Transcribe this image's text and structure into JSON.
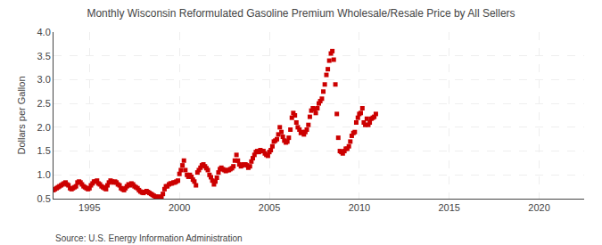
{
  "chart_data": {
    "type": "scatter",
    "title": "Monthly Wisconsin Reformulated Gasoline Premium Wholesale/Resale Price by All Sellers",
    "ylabel": "Dollars per Gallon",
    "annotations": [
      "Source: U.S. Energy Information Administration"
    ],
    "color": "#cc0000",
    "marker": "square",
    "grid": true,
    "xlim": [
      1993.0,
      2022.5
    ],
    "xticks": [
      1995,
      2000,
      2005,
      2010,
      2015,
      2020
    ],
    "ylim": [
      0.5,
      4.0
    ],
    "yticks": [
      0.5,
      {
        "value": 1.0,
        "label": "1.0"
      },
      1.5,
      {
        "value": 2.0,
        "label": "2.0"
      },
      2.5,
      {
        "value": 3.0,
        "label": "3.0"
      },
      3.5,
      {
        "value": 4.0,
        "label": "4.0"
      }
    ],
    "x": [
      1993.0,
      1993.08,
      1993.17,
      1993.25,
      1993.33,
      1993.42,
      1993.5,
      1993.58,
      1993.67,
      1993.75,
      1993.83,
      1993.92,
      1994.0,
      1994.08,
      1994.17,
      1994.25,
      1994.33,
      1994.42,
      1994.5,
      1994.58,
      1994.67,
      1994.75,
      1994.83,
      1994.92,
      1995.0,
      1995.08,
      1995.17,
      1995.25,
      1995.33,
      1995.42,
      1995.5,
      1995.58,
      1995.67,
      1995.75,
      1995.83,
      1995.92,
      1996.0,
      1996.08,
      1996.17,
      1996.25,
      1996.33,
      1996.42,
      1996.5,
      1996.58,
      1996.67,
      1996.75,
      1996.83,
      1996.92,
      1997.0,
      1997.08,
      1997.17,
      1997.25,
      1997.33,
      1997.42,
      1997.5,
      1997.58,
      1997.67,
      1997.75,
      1997.83,
      1997.92,
      1998.0,
      1998.08,
      1998.17,
      1998.25,
      1998.33,
      1998.42,
      1998.5,
      1998.58,
      1998.67,
      1998.75,
      1998.83,
      1998.92,
      1999.0,
      1999.08,
      1999.17,
      1999.25,
      1999.33,
      1999.42,
      1999.5,
      1999.58,
      1999.67,
      1999.75,
      1999.83,
      1999.92,
      2000.0,
      2000.08,
      2000.17,
      2000.25,
      2000.33,
      2000.42,
      2000.5,
      2000.58,
      2000.67,
      2000.75,
      2000.83,
      2000.92,
      2001.0,
      2001.08,
      2001.17,
      2001.25,
      2001.33,
      2001.42,
      2001.5,
      2001.58,
      2001.67,
      2001.75,
      2001.83,
      2001.92,
      2002.0,
      2002.08,
      2002.17,
      2002.25,
      2002.33,
      2002.42,
      2002.5,
      2002.58,
      2002.67,
      2002.75,
      2002.83,
      2002.92,
      2003.0,
      2003.08,
      2003.17,
      2003.25,
      2003.33,
      2003.42,
      2003.5,
      2003.58,
      2003.67,
      2003.75,
      2003.83,
      2003.92,
      2004.0,
      2004.08,
      2004.17,
      2004.25,
      2004.33,
      2004.42,
      2004.5,
      2004.58,
      2004.67,
      2004.75,
      2004.83,
      2004.92,
      2005.0,
      2005.08,
      2005.17,
      2005.25,
      2005.33,
      2005.42,
      2005.5,
      2005.58,
      2005.67,
      2005.75,
      2005.83,
      2005.92,
      2006.0,
      2006.08,
      2006.17,
      2006.25,
      2006.33,
      2006.42,
      2006.5,
      2006.58,
      2006.67,
      2006.75,
      2006.83,
      2006.92,
      2007.0,
      2007.08,
      2007.17,
      2007.25,
      2007.33,
      2007.42,
      2007.5,
      2007.58,
      2007.67,
      2007.75,
      2007.83,
      2007.92,
      2008.0,
      2008.08,
      2008.17,
      2008.25,
      2008.33,
      2008.42,
      2008.5,
      2008.58,
      2008.67,
      2008.75,
      2008.83,
      2008.92,
      2009.0,
      2009.08,
      2009.17,
      2009.25,
      2009.33,
      2009.42,
      2009.5,
      2009.58,
      2009.67,
      2009.75,
      2009.83,
      2009.92,
      2010.0,
      2010.08,
      2010.17,
      2010.25,
      2010.33,
      2010.42,
      2010.5,
      2010.58,
      2010.67,
      2010.75,
      2010.83,
      2010.92
    ],
    "values": [
      0.68,
      0.7,
      0.72,
      0.74,
      0.76,
      0.78,
      0.8,
      0.82,
      0.84,
      0.8,
      0.78,
      0.72,
      0.7,
      0.72,
      0.74,
      0.76,
      0.84,
      0.86,
      0.84,
      0.8,
      0.76,
      0.74,
      0.72,
      0.7,
      0.72,
      0.78,
      0.82,
      0.86,
      0.86,
      0.88,
      0.82,
      0.8,
      0.76,
      0.74,
      0.72,
      0.7,
      0.78,
      0.84,
      0.88,
      0.86,
      0.84,
      0.86,
      0.84,
      0.8,
      0.78,
      0.72,
      0.7,
      0.68,
      0.72,
      0.76,
      0.8,
      0.78,
      0.82,
      0.8,
      0.76,
      0.74,
      0.72,
      0.68,
      0.65,
      0.63,
      0.62,
      0.64,
      0.66,
      0.64,
      0.62,
      0.6,
      0.58,
      0.56,
      0.54,
      0.54,
      0.54,
      0.52,
      0.54,
      0.6,
      0.7,
      0.76,
      0.76,
      0.8,
      0.82,
      0.82,
      0.84,
      0.84,
      0.86,
      0.88,
      1.02,
      1.1,
      1.2,
      1.3,
      1.1,
      1.0,
      0.96,
      1.0,
      0.96,
      0.9,
      0.86,
      0.78,
      1.05,
      1.1,
      1.15,
      1.2,
      1.22,
      1.18,
      1.14,
      1.1,
      1.0,
      0.95,
      0.88,
      0.8,
      0.86,
      0.94,
      1.05,
      1.12,
      1.15,
      1.12,
      1.1,
      1.08,
      1.1,
      1.1,
      1.12,
      1.14,
      1.18,
      1.3,
      1.42,
      1.3,
      1.22,
      1.18,
      1.2,
      1.22,
      1.22,
      1.2,
      1.15,
      1.18,
      1.28,
      1.35,
      1.42,
      1.48,
      1.5,
      1.48,
      1.52,
      1.5,
      1.5,
      1.45,
      1.42,
      1.4,
      1.48,
      1.52,
      1.6,
      1.7,
      1.72,
      1.75,
      1.85,
      2.0,
      1.9,
      1.8,
      1.72,
      1.68,
      1.7,
      1.78,
      1.95,
      2.2,
      2.3,
      2.25,
      2.1,
      2.0,
      1.95,
      1.88,
      1.9,
      1.85,
      1.9,
      1.95,
      2.05,
      2.22,
      2.35,
      2.4,
      2.38,
      2.3,
      2.4,
      2.5,
      2.55,
      2.6,
      2.75,
      2.9,
      3.1,
      3.22,
      3.4,
      3.55,
      3.6,
      3.42,
      2.9,
      2.28,
      1.78,
      1.5,
      1.48,
      1.45,
      1.5,
      1.55,
      1.55,
      1.6,
      1.7,
      1.82,
      1.88,
      1.9,
      2.1,
      2.2,
      2.28,
      2.3,
      2.4,
      2.1,
      2.05,
      2.18,
      2.05,
      2.1,
      2.18,
      2.2,
      2.22,
      2.28
    ]
  }
}
